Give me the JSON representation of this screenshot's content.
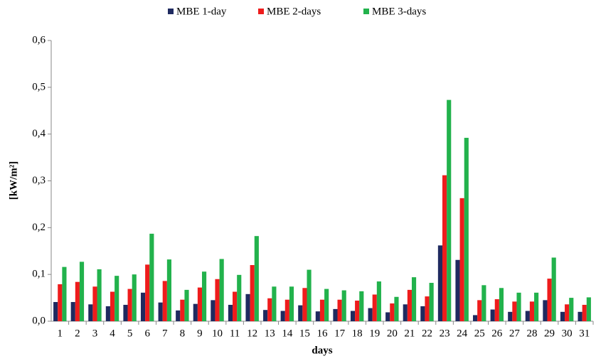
{
  "chart_data": {
    "type": "bar",
    "x_label": "days",
    "y_label": "[kW/m²]",
    "categories": [
      "1",
      "2",
      "3",
      "4",
      "5",
      "6",
      "7",
      "8",
      "9",
      "10",
      "11",
      "12",
      "13",
      "14",
      "15",
      "16",
      "17",
      "18",
      "19",
      "20",
      "21",
      "22",
      "23",
      "24",
      "25",
      "26",
      "27",
      "28",
      "29",
      "30",
      "31"
    ],
    "series": [
      {
        "name": "MBE 1-day",
        "color": "#1f2a60",
        "values": [
          0.041,
          0.041,
          0.036,
          0.032,
          0.035,
          0.061,
          0.04,
          0.023,
          0.037,
          0.045,
          0.035,
          0.058,
          0.024,
          0.022,
          0.034,
          0.021,
          0.026,
          0.022,
          0.028,
          0.019,
          0.036,
          0.032,
          0.162,
          0.131,
          0.013,
          0.025,
          0.02,
          0.022,
          0.045,
          0.02,
          0.02
        ]
      },
      {
        "name": "MBE 2-days",
        "color": "#ee1c1c",
        "values": [
          0.079,
          0.084,
          0.074,
          0.063,
          0.069,
          0.121,
          0.086,
          0.046,
          0.072,
          0.09,
          0.063,
          0.12,
          0.049,
          0.046,
          0.071,
          0.046,
          0.046,
          0.044,
          0.057,
          0.038,
          0.067,
          0.053,
          0.312,
          0.263,
          0.045,
          0.047,
          0.042,
          0.042,
          0.091,
          0.036,
          0.035
        ]
      },
      {
        "name": "MBE 3-days",
        "color": "#22b24c",
        "values": [
          0.116,
          0.127,
          0.111,
          0.097,
          0.1,
          0.187,
          0.132,
          0.067,
          0.106,
          0.133,
          0.099,
          0.182,
          0.074,
          0.074,
          0.11,
          0.069,
          0.066,
          0.064,
          0.085,
          0.052,
          0.094,
          0.082,
          0.473,
          0.392,
          0.077,
          0.071,
          0.061,
          0.061,
          0.136,
          0.05,
          0.051
        ]
      }
    ],
    "ylim": [
      0,
      0.6
    ],
    "yticks": [
      {
        "value": 0,
        "label": "0,0"
      },
      {
        "value": 0.1,
        "label": "0,1"
      },
      {
        "value": 0.2,
        "label": "0,2"
      },
      {
        "value": 0.3,
        "label": "0,3"
      },
      {
        "value": 0.4,
        "label": "0,4"
      },
      {
        "value": 0.5,
        "label": "0,5"
      },
      {
        "value": 0.6,
        "label": "0,6"
      }
    ],
    "legend": "top"
  }
}
